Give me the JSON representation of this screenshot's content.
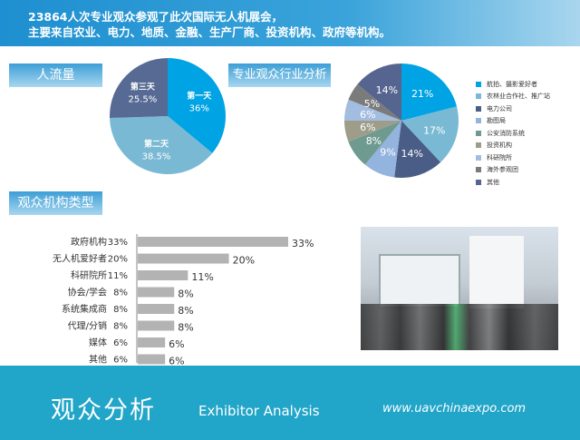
{
  "header": {
    "line1": "23864人次专业观众参观了此次国际无人机展会，",
    "line2": "主要来自农业、电力、地质、金融、生产厂商、投资机构、政府等机构。"
  },
  "sections": {
    "traffic": "人流量",
    "industry": "专业观众行业分析",
    "org_type": "观众机构类型"
  },
  "footer": {
    "title_cn": "观众分析",
    "title_en": "Exhibitor Analysis",
    "url": "www.uavchinaexpo.com"
  },
  "chart_data": [
    {
      "type": "pie",
      "title": "人流量",
      "categories": [
        "第一天",
        "第二天",
        "第三天"
      ],
      "values": [
        36,
        38.5,
        25.5
      ],
      "labels": [
        "36%",
        "38.5%",
        "25.5%"
      ],
      "colors": [
        "#00a3e4",
        "#7ab9d4",
        "#566a93"
      ]
    },
    {
      "type": "pie",
      "title": "专业观众行业分析",
      "categories": [
        "航拍、摄影爱好者",
        "农林业合作社、推广站",
        "电力公司",
        "勘图局",
        "公安消防系统",
        "投资机构",
        "科研院所",
        "海外参观团",
        "其他"
      ],
      "values": [
        21,
        17,
        14,
        9,
        8,
        6,
        6,
        5,
        14
      ],
      "labels": [
        "21%",
        "17%",
        "14%",
        "9%",
        "8%",
        "6%",
        "6%",
        "5%",
        "14%"
      ],
      "colors": [
        "#00a3e4",
        "#7ab9d4",
        "#4a5d86",
        "#93b4de",
        "#6f9a90",
        "#9d9d8a",
        "#a3bde0",
        "#7b7b7b",
        "#566590"
      ],
      "legend": "right"
    },
    {
      "type": "bar",
      "orientation": "horizontal",
      "title": "观众机构类型",
      "categories": [
        "政府机构",
        "无人机爱好者",
        "科研院所",
        "协会/学会",
        "系统集成商",
        "代理/分销",
        "媒体",
        "其他"
      ],
      "values": [
        33,
        20,
        11,
        8,
        8,
        8,
        6,
        6
      ],
      "labels": [
        "33%",
        "20%",
        "11%",
        "8%",
        "8%",
        "8%",
        "6%",
        "6%"
      ],
      "color": "#b3b3b3"
    }
  ]
}
